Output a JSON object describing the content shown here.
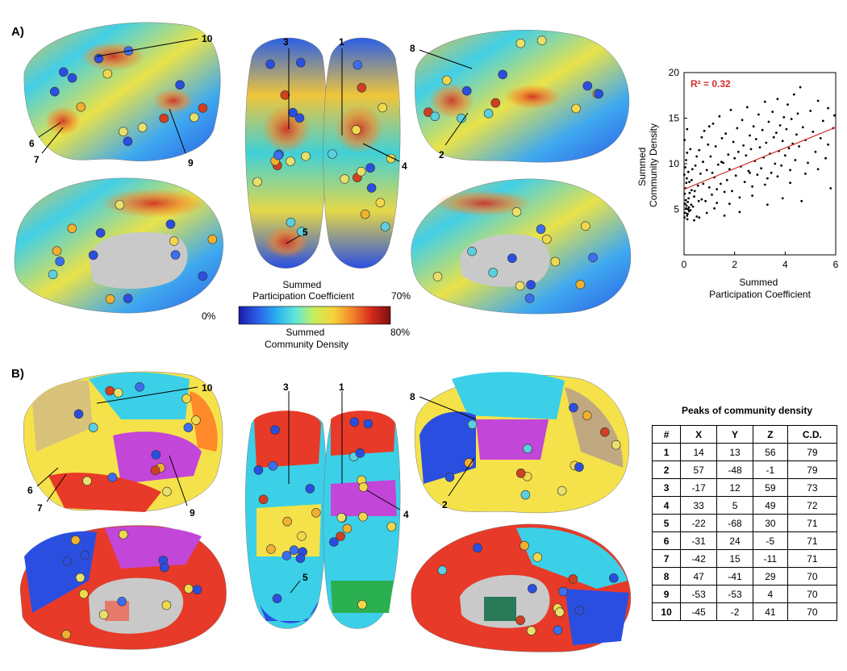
{
  "panels": {
    "a": "A)",
    "b": "B)"
  },
  "colorbar": {
    "title_top": "Summed\nParticipation Coefficient",
    "max_top": "70%",
    "min": "0%",
    "title_bottom": "Summed\nCommunity Density",
    "max_bottom": "80%",
    "stops": [
      "#1a1aa8",
      "#2a5fe6",
      "#2bb0f0",
      "#5fe8d8",
      "#c8ee5a",
      "#f7d23a",
      "#f4832a",
      "#d42a1c",
      "#7a0f0f"
    ]
  },
  "brain_labels": {
    "a": [
      "10",
      "3",
      "1",
      "8",
      "6",
      "7",
      "9",
      "2",
      "4",
      "5"
    ],
    "b": [
      "10",
      "3",
      "1",
      "8",
      "6",
      "7",
      "9",
      "2",
      "4",
      "5"
    ]
  },
  "scatter_text": {
    "r2": "R² = 0.32",
    "ylabel": "Summed\nCommunity Density",
    "xlabel": "Summed\nParticipation Coefficient",
    "xticks": [
      "0",
      "2",
      "4",
      "6"
    ],
    "yticks": [
      "5",
      "10",
      "15",
      "20"
    ]
  },
  "chart_data": {
    "type": "scatter",
    "title": "",
    "xlabel": "Summed Participation Coefficient",
    "ylabel": "Summed Community Density",
    "xlim": [
      0,
      6
    ],
    "ylim": [
      0,
      20
    ],
    "grid": false,
    "annotation": "R² = 0.32",
    "fit_line": {
      "x": [
        0,
        6
      ],
      "y": [
        7.2,
        14.0
      ]
    },
    "points": [
      [
        0.02,
        4.1
      ],
      [
        0.05,
        4.6
      ],
      [
        0.08,
        5.1
      ],
      [
        0.1,
        5.4
      ],
      [
        0.12,
        4.3
      ],
      [
        0.15,
        5.8
      ],
      [
        0.18,
        6.2
      ],
      [
        0.2,
        4.8
      ],
      [
        0.03,
        6.7
      ],
      [
        0.06,
        7.3
      ],
      [
        0.09,
        7.9
      ],
      [
        0.11,
        8.4
      ],
      [
        0.13,
        3.9
      ],
      [
        0.16,
        5.0
      ],
      [
        0.04,
        5.6
      ],
      [
        0.07,
        6.0
      ],
      [
        0.14,
        4.5
      ],
      [
        0.19,
        5.2
      ],
      [
        0.22,
        6.8
      ],
      [
        0.25,
        4.9
      ],
      [
        0.28,
        5.5
      ],
      [
        0.3,
        7.1
      ],
      [
        0.01,
        8.8
      ],
      [
        0.05,
        9.6
      ],
      [
        0.08,
        10.4
      ],
      [
        0.12,
        11.2
      ],
      [
        0.02,
        12.6
      ],
      [
        0.17,
        9.1
      ],
      [
        0.21,
        8.0
      ],
      [
        0.35,
        5.3
      ],
      [
        0.4,
        6.4
      ],
      [
        0.45,
        9.8
      ],
      [
        0.5,
        4.2
      ],
      [
        0.55,
        7.6
      ],
      [
        0.6,
        11.5
      ],
      [
        0.65,
        8.9
      ],
      [
        0.7,
        6.1
      ],
      [
        0.75,
        10.2
      ],
      [
        0.8,
        13.6
      ],
      [
        0.85,
        5.9
      ],
      [
        0.9,
        9.3
      ],
      [
        0.95,
        12.1
      ],
      [
        1.0,
        7.4
      ],
      [
        1.05,
        10.8
      ],
      [
        1.1,
        6.6
      ],
      [
        1.15,
        14.4
      ],
      [
        1.2,
        8.5
      ],
      [
        1.25,
        11.9
      ],
      [
        1.3,
        5.7
      ],
      [
        1.35,
        9.9
      ],
      [
        1.4,
        15.2
      ],
      [
        1.45,
        7.8
      ],
      [
        1.5,
        12.8
      ],
      [
        1.55,
        10.1
      ],
      [
        1.6,
        6.9
      ],
      [
        1.65,
        13.3
      ],
      [
        1.7,
        8.2
      ],
      [
        1.75,
        11.0
      ],
      [
        1.8,
        9.4
      ],
      [
        1.85,
        15.9
      ],
      [
        1.9,
        7.0
      ],
      [
        1.95,
        12.4
      ],
      [
        2.0,
        10.6
      ],
      [
        2.05,
        8.7
      ],
      [
        2.1,
        13.9
      ],
      [
        2.15,
        11.3
      ],
      [
        2.2,
        6.3
      ],
      [
        2.25,
        9.7
      ],
      [
        2.3,
        14.8
      ],
      [
        2.35,
        12.0
      ],
      [
        2.4,
        8.0
      ],
      [
        2.45,
        10.9
      ],
      [
        2.5,
        16.2
      ],
      [
        2.55,
        9.2
      ],
      [
        2.6,
        13.1
      ],
      [
        2.65,
        11.6
      ],
      [
        2.7,
        7.5
      ],
      [
        2.75,
        14.1
      ],
      [
        2.8,
        10.3
      ],
      [
        2.85,
        12.7
      ],
      [
        2.9,
        8.8
      ],
      [
        2.95,
        15.4
      ],
      [
        3.0,
        11.8
      ],
      [
        3.05,
        9.5
      ],
      [
        3.1,
        13.7
      ],
      [
        3.15,
        10.7
      ],
      [
        3.2,
        16.8
      ],
      [
        3.25,
        12.3
      ],
      [
        3.3,
        8.4
      ],
      [
        3.35,
        14.6
      ],
      [
        3.4,
        11.1
      ],
      [
        3.45,
        9.0
      ],
      [
        3.5,
        15.7
      ],
      [
        3.55,
        12.9
      ],
      [
        3.6,
        10.0
      ],
      [
        3.65,
        13.4
      ],
      [
        3.7,
        17.1
      ],
      [
        3.75,
        11.4
      ],
      [
        3.8,
        14.2
      ],
      [
        3.85,
        9.8
      ],
      [
        3.9,
        12.5
      ],
      [
        3.95,
        15.1
      ],
      [
        4.0,
        10.9
      ],
      [
        4.05,
        13.8
      ],
      [
        4.1,
        16.5
      ],
      [
        4.15,
        11.7
      ],
      [
        4.2,
        9.3
      ],
      [
        4.25,
        14.9
      ],
      [
        4.3,
        12.2
      ],
      [
        4.35,
        17.6
      ],
      [
        4.4,
        10.4
      ],
      [
        4.45,
        13.2
      ],
      [
        4.5,
        15.5
      ],
      [
        4.55,
        11.9
      ],
      [
        4.6,
        18.4
      ],
      [
        4.65,
        5.9
      ],
      [
        4.7,
        14.0
      ],
      [
        4.8,
        12.6
      ],
      [
        4.9,
        10.1
      ],
      [
        5.0,
        15.8
      ],
      [
        5.1,
        13.5
      ],
      [
        5.2,
        11.3
      ],
      [
        5.3,
        16.9
      ],
      [
        5.4,
        12.8
      ],
      [
        5.5,
        14.7
      ],
      [
        5.6,
        10.6
      ],
      [
        5.7,
        16.1
      ],
      [
        5.8,
        7.3
      ],
      [
        5.9,
        13.9
      ],
      [
        5.95,
        15.3
      ],
      [
        3.3,
        5.5
      ],
      [
        2.7,
        6.5
      ],
      [
        1.6,
        4.3
      ],
      [
        0.4,
        3.8
      ],
      [
        0.6,
        4.1
      ],
      [
        0.9,
        4.6
      ],
      [
        1.2,
        5.1
      ],
      [
        2.2,
        4.7
      ],
      [
        3.9,
        6.2
      ],
      [
        4.8,
        8.9
      ],
      [
        0.3,
        8.2
      ],
      [
        0.5,
        10.8
      ],
      [
        0.7,
        12.9
      ],
      [
        1.0,
        14.1
      ],
      [
        1.3,
        7.2
      ],
      [
        1.8,
        5.6
      ],
      [
        2.6,
        9.0
      ],
      [
        3.2,
        7.7
      ],
      [
        3.7,
        8.6
      ],
      [
        4.2,
        7.9
      ],
      [
        5.3,
        9.4
      ],
      [
        5.7,
        12.1
      ],
      [
        0.12,
        13.8
      ],
      [
        0.25,
        11.6
      ],
      [
        0.33,
        9.4
      ],
      [
        0.42,
        7.0
      ],
      [
        0.58,
        5.9
      ],
      [
        0.76,
        7.8
      ],
      [
        1.12,
        9.0
      ],
      [
        1.48,
        10.2
      ]
    ]
  },
  "peaks_table": {
    "title": "Peaks of community density",
    "headers": [
      "#",
      "X",
      "Y",
      "Z",
      "C.D."
    ],
    "rows": [
      [
        "1",
        "14",
        "13",
        "56",
        "79"
      ],
      [
        "2",
        "57",
        "-48",
        "-1",
        "79"
      ],
      [
        "3",
        "-17",
        "12",
        "59",
        "73"
      ],
      [
        "4",
        "33",
        "5",
        "49",
        "72"
      ],
      [
        "5",
        "-22",
        "-68",
        "30",
        "71"
      ],
      [
        "6",
        "-31",
        "24",
        "-5",
        "71"
      ],
      [
        "7",
        "-42",
        "15",
        "-11",
        "71"
      ],
      [
        "8",
        "47",
        "-41",
        "29",
        "70"
      ],
      [
        "9",
        "-53",
        "-53",
        "4",
        "70"
      ],
      [
        "10",
        "-45",
        "-2",
        "41",
        "70"
      ]
    ]
  }
}
